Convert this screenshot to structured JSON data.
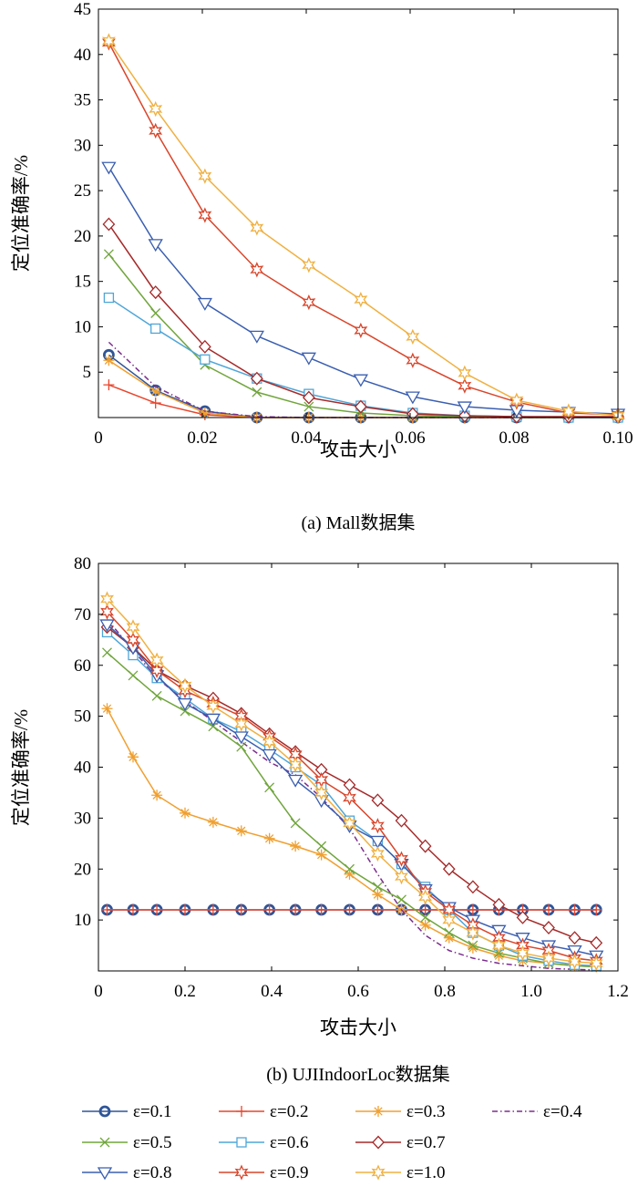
{
  "chart_data": [
    {
      "type": "line",
      "title": "(a) Mall数据集",
      "xlabel": "攻击大小",
      "ylabel": "定位准确率/%",
      "xlim": [
        0,
        0.1
      ],
      "ylim": [
        0,
        45
      ],
      "xticks": [
        "0",
        "0.02",
        "0.04",
        "0.06",
        "0.08",
        "0.10"
      ],
      "xtick_values": [
        0,
        0.02,
        0.04,
        0.06,
        0.08,
        0.1
      ],
      "yticks": [
        "5",
        "10",
        "15",
        "20",
        "25",
        "30",
        "35",
        "40",
        "45"
      ],
      "ytick_values": [
        5,
        10,
        15,
        20,
        25,
        30,
        35,
        40,
        45
      ],
      "x": [
        0.002,
        0.011,
        0.0205,
        0.0305,
        0.0405,
        0.0505,
        0.0605,
        0.0705,
        0.0805,
        0.0905,
        0.1
      ],
      "series": [
        {
          "name": "ε=0.1",
          "values": [
            6.9,
            3.0,
            0.7,
            0.0,
            0.0,
            0.0,
            0.0,
            0.0,
            0.0,
            0.0,
            0.0
          ]
        },
        {
          "name": "ε=0.2",
          "values": [
            3.6,
            1.6,
            0.3,
            0.0,
            0.0,
            0.0,
            0.0,
            0.0,
            0.0,
            0.0,
            0.0
          ]
        },
        {
          "name": "ε=0.3",
          "values": [
            6.3,
            2.9,
            0.5,
            0.0,
            0.0,
            0.0,
            0.0,
            0.0,
            0.0,
            0.0,
            0.0
          ]
        },
        {
          "name": "ε=0.4",
          "values": [
            8.3,
            3.4,
            0.7,
            0.1,
            0.0,
            0.0,
            0.0,
            0.0,
            0.0,
            0.0,
            0.0
          ]
        },
        {
          "name": "ε=0.5",
          "values": [
            18.0,
            11.5,
            5.8,
            2.8,
            1.2,
            0.5,
            0.2,
            0.1,
            0.0,
            0.0,
            0.0
          ]
        },
        {
          "name": "ε=0.6",
          "values": [
            13.2,
            9.8,
            6.4,
            4.3,
            2.6,
            1.3,
            0.5,
            0.2,
            0.1,
            0.0,
            0.0
          ]
        },
        {
          "name": "ε=0.7",
          "values": [
            21.3,
            13.8,
            7.8,
            4.3,
            2.2,
            1.2,
            0.4,
            0.2,
            0.1,
            0.1,
            0.1
          ]
        },
        {
          "name": "ε=0.8",
          "values": [
            27.6,
            19.1,
            12.6,
            9.0,
            6.6,
            4.2,
            2.3,
            1.2,
            0.8,
            0.6,
            0.4
          ]
        },
        {
          "name": "ε=0.9",
          "values": [
            41.3,
            31.6,
            22.3,
            16.3,
            12.7,
            9.6,
            6.3,
            3.5,
            1.7,
            0.5,
            0.3
          ]
        },
        {
          "name": "ε=1.0",
          "values": [
            41.5,
            34.0,
            26.6,
            20.9,
            16.8,
            13.0,
            8.9,
            4.9,
            1.9,
            0.7,
            0.2
          ]
        }
      ],
      "legend": "bottom",
      "grid": false
    },
    {
      "type": "line",
      "title": "(b) UJIIndoorLoc数据集",
      "xlabel": "攻击大小",
      "ylabel": "定位准确率/%",
      "xlim": [
        0,
        1.2
      ],
      "ylim": [
        0,
        80
      ],
      "xticks": [
        "0",
        "0.2",
        "0.4",
        "0.6",
        "0.8",
        "1.0",
        "1.2"
      ],
      "xtick_values": [
        0,
        0.2,
        0.4,
        0.6,
        0.8,
        1.0,
        1.2
      ],
      "yticks": [
        "10",
        "20",
        "30",
        "40",
        "50",
        "60",
        "70",
        "80"
      ],
      "ytick_values": [
        10,
        20,
        30,
        40,
        50,
        60,
        70,
        80
      ],
      "x": [
        0.02,
        0.08,
        0.135,
        0.2,
        0.265,
        0.33,
        0.395,
        0.455,
        0.515,
        0.58,
        0.645,
        0.7,
        0.755,
        0.81,
        0.865,
        0.925,
        0.98,
        1.04,
        1.1,
        1.15
      ],
      "series": [
        {
          "name": "ε=0.1",
          "values": [
            12,
            12,
            12,
            12,
            12,
            12,
            12,
            12,
            12,
            12,
            12,
            12,
            12,
            12,
            12,
            12,
            12,
            12,
            12,
            12
          ]
        },
        {
          "name": "ε=0.2",
          "values": [
            12,
            12,
            12,
            12,
            12,
            12,
            12,
            12,
            12,
            12,
            12,
            12,
            12,
            12,
            12,
            12,
            12,
            12,
            12,
            12
          ]
        },
        {
          "name": "ε=0.3",
          "values": [
            51.5,
            42.0,
            34.5,
            31.0,
            29.2,
            27.5,
            26.0,
            24.5,
            22.8,
            19.0,
            15.0,
            12.0,
            9.0,
            6.5,
            4.5,
            3.0,
            2.0,
            1.5,
            1.0,
            0.8
          ]
        },
        {
          "name": "ε=0.4",
          "values": [
            69.0,
            63.0,
            57.5,
            53.0,
            49.0,
            45.0,
            41.0,
            38.5,
            34.0,
            28.0,
            19.0,
            12.0,
            7.0,
            4.0,
            2.5,
            1.5,
            1.0,
            0.5,
            0.3,
            0.2
          ]
        },
        {
          "name": "ε=0.5",
          "values": [
            62.5,
            58.0,
            54.0,
            51.0,
            48.0,
            44.0,
            36.0,
            29.0,
            24.5,
            20.0,
            16.5,
            14.0,
            10.5,
            7.5,
            5.0,
            3.5,
            2.5,
            1.5,
            1.0,
            0.8
          ]
        },
        {
          "name": "ε=0.6",
          "values": [
            66.5,
            62.0,
            57.5,
            53.5,
            49.5,
            47.0,
            43.5,
            40.0,
            36.5,
            29.5,
            25.5,
            21.0,
            16.5,
            12.0,
            7.5,
            5.0,
            3.0,
            2.0,
            1.2,
            1.0
          ]
        },
        {
          "name": "ε=0.7",
          "values": [
            67.5,
            63.5,
            59.0,
            56.0,
            53.5,
            50.5,
            46.5,
            43.0,
            39.5,
            36.5,
            33.5,
            29.5,
            24.5,
            20.0,
            16.5,
            13.0,
            10.5,
            8.5,
            6.5,
            5.5
          ]
        },
        {
          "name": "ε=0.8",
          "values": [
            68.0,
            63.5,
            58.0,
            52.5,
            49.5,
            46.0,
            42.5,
            37.5,
            33.5,
            28.5,
            25.5,
            21.0,
            16.0,
            12.5,
            10.0,
            8.0,
            6.5,
            5.0,
            4.0,
            3.0
          ]
        },
        {
          "name": "ε=0.9",
          "values": [
            70.5,
            65.0,
            59.0,
            55.0,
            52.5,
            50.0,
            46.0,
            42.5,
            37.5,
            34.0,
            28.5,
            22.0,
            15.5,
            12.0,
            9.0,
            6.5,
            5.0,
            4.0,
            2.5,
            2.0
          ]
        },
        {
          "name": "ε=1.0",
          "values": [
            73.0,
            67.5,
            61.0,
            56.0,
            52.0,
            48.5,
            45.0,
            40.5,
            35.0,
            29.0,
            23.0,
            18.5,
            14.5,
            10.0,
            7.5,
            5.0,
            3.5,
            2.5,
            1.8,
            1.5
          ]
        }
      ],
      "legend": "bottom",
      "grid": false
    }
  ],
  "legend_entries": [
    "ε=0.1",
    "ε=0.2",
    "ε=0.3",
    "ε=0.4",
    "ε=0.5",
    "ε=0.6",
    "ε=0.7",
    "ε=0.8",
    "ε=0.9",
    "ε=1.0"
  ],
  "series_colors": [
    "#2f5597",
    "#e8452c",
    "#f0a030",
    "#7b2d8e",
    "#70a53c",
    "#4fa6d8",
    "#a52a2a",
    "#3a5eb0",
    "#d9452a",
    "#f0b040"
  ],
  "series_markers": [
    "circle",
    "plus",
    "asterisk",
    "none",
    "x",
    "square",
    "diamond",
    "triangle-down",
    "star",
    "star-outline"
  ]
}
